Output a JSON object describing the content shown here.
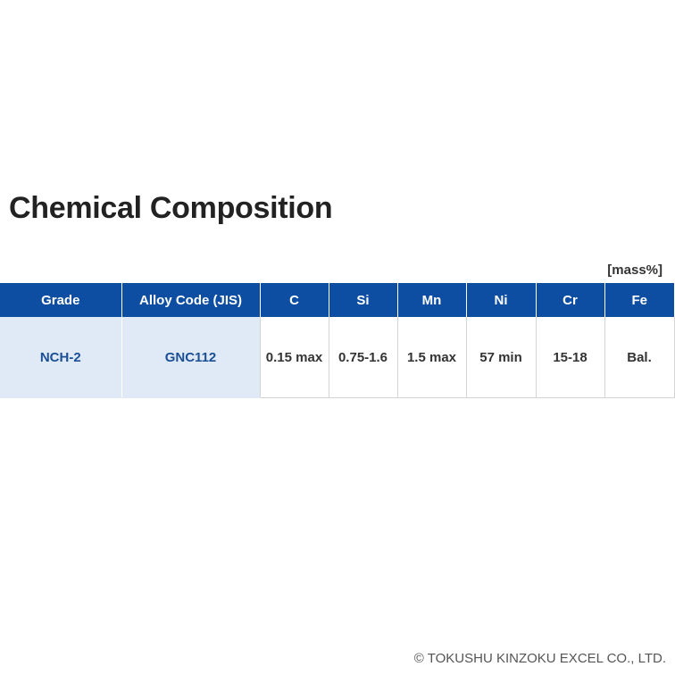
{
  "title": "Chemical Composition",
  "unit": "[mass%]",
  "table": {
    "headers": [
      "Grade",
      "Alloy Code (JIS)",
      "C",
      "Si",
      "Mn",
      "Ni",
      "Cr",
      "Fe"
    ],
    "rows": [
      [
        "NCH-2",
        "GNC112",
        "0.15 max",
        "0.75-1.6",
        "1.5 max",
        "57 min",
        "15-18",
        "Bal."
      ]
    ]
  },
  "footer": {
    "copyright": "© TOKUSHU KINZOKU EXCEL CO., LTD."
  },
  "colors": {
    "header_bg": "#0d4ea3",
    "key_cell_bg": "#dfeaf6",
    "key_text": "#1b4f96"
  }
}
